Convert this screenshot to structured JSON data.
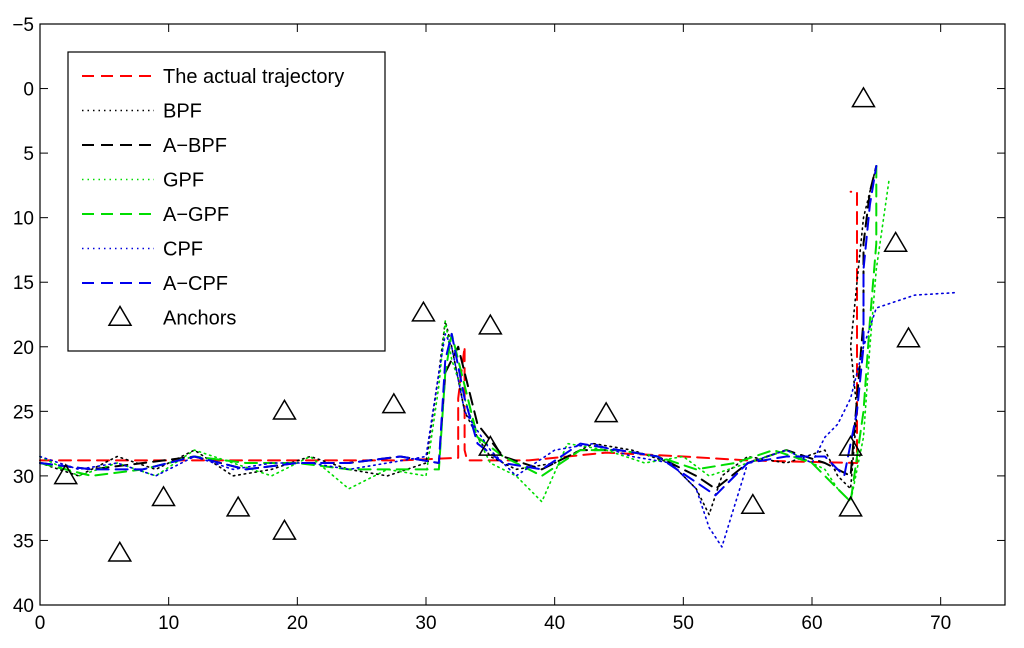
{
  "chart_data": {
    "type": "line",
    "title": "",
    "xlabel": "",
    "ylabel": "",
    "xlim": [
      0,
      75
    ],
    "ylim": [
      -5,
      40
    ],
    "y_axis_reversed": true,
    "grid": false,
    "legend_position": "top-left",
    "x_ticks": [
      "0",
      "10",
      "20",
      "30",
      "40",
      "50",
      "60",
      "70"
    ],
    "y_ticks": [
      "−5",
      "0",
      "5",
      "10",
      "15",
      "20",
      "25",
      "30",
      "35",
      "40"
    ],
    "series": [
      {
        "name": "The actual trajectory",
        "color": "#ff0000",
        "style": "dashed",
        "x": [
          0,
          10,
          20,
          28,
          32.5,
          32.5,
          33,
          33,
          33.2,
          38,
          44,
          50,
          55,
          63.5,
          63.5,
          63.5,
          63.5,
          63
        ],
        "y": [
          28.8,
          28.8,
          28.8,
          28.8,
          28.6,
          24,
          20,
          28,
          28.8,
          28.8,
          28.2,
          28.5,
          28.8,
          29,
          20,
          12,
          8,
          8
        ]
      },
      {
        "name": "BPF",
        "color": "#000000",
        "style": "dotted",
        "x": [
          0,
          3,
          6,
          9,
          12,
          15,
          18,
          21,
          24,
          27,
          30,
          31,
          31.5,
          32,
          33,
          34,
          35,
          37,
          40,
          43,
          46,
          49,
          51,
          52,
          53,
          55,
          58,
          61,
          62,
          63,
          63.5,
          63,
          63.5,
          64,
          64.5,
          65
        ],
        "y": [
          29,
          30,
          28.5,
          29.5,
          28,
          30,
          29.5,
          28.5,
          29.5,
          30,
          29,
          22,
          18,
          20,
          25,
          27,
          28.5,
          29.5,
          29,
          27.5,
          28,
          29,
          31,
          33,
          30,
          28.5,
          29,
          28,
          30,
          31,
          25,
          20,
          15,
          10,
          8,
          6
        ]
      },
      {
        "name": "A−BPF",
        "color": "#000000",
        "style": "dashed",
        "x": [
          0,
          4,
          8,
          12,
          16,
          20,
          24,
          28,
          31,
          31.5,
          32.5,
          34,
          36,
          39,
          42,
          45,
          48,
          51,
          52.5,
          55,
          58,
          61,
          63,
          63.5,
          64,
          64,
          64.5,
          65
        ],
        "y": [
          29,
          29.5,
          29,
          28.5,
          29.5,
          29,
          29,
          28.5,
          29,
          22,
          20,
          26,
          28.5,
          29.5,
          28,
          28,
          28.5,
          30,
          31,
          29,
          28,
          29,
          30,
          24,
          18,
          12,
          8,
          6
        ]
      },
      {
        "name": "GPF",
        "color": "#00dd00",
        "style": "dotted",
        "x": [
          0,
          3,
          6,
          9,
          12,
          15,
          18,
          21,
          24,
          27,
          30,
          31,
          31.5,
          32,
          33,
          34,
          35,
          37,
          39,
          41,
          44,
          47,
          50,
          52,
          55,
          58,
          61,
          62,
          63,
          64,
          64.5,
          65,
          66
        ],
        "y": [
          28.5,
          30,
          29,
          30,
          28,
          29,
          30,
          28.5,
          31,
          29.5,
          30,
          23,
          18,
          21,
          24,
          27,
          29,
          30,
          32,
          27.5,
          28,
          29,
          28.5,
          30,
          29,
          28,
          29.5,
          31,
          32,
          27,
          20,
          14,
          7
        ]
      },
      {
        "name": "A−GPF",
        "color": "#00dd00",
        "style": "dashed",
        "x": [
          0,
          4,
          8,
          12,
          16,
          20,
          24,
          28,
          31,
          31.5,
          32,
          33,
          34,
          36,
          39,
          42,
          45,
          48,
          51,
          54,
          57,
          60,
          62,
          63,
          64,
          64.5,
          65,
          65
        ],
        "y": [
          29,
          30,
          29.5,
          28.5,
          29,
          29,
          29.5,
          29.5,
          29.5,
          22,
          19,
          23,
          27,
          28.5,
          30,
          28,
          28,
          28.5,
          29.5,
          29,
          28,
          29,
          31,
          32,
          25,
          18,
          12,
          6
        ]
      },
      {
        "name": "CPF",
        "color": "#0000dd",
        "style": "dotted",
        "x": [
          0,
          3,
          6,
          9,
          12,
          15,
          18,
          21,
          24,
          27,
          30,
          31,
          31.5,
          32,
          33,
          35,
          37,
          40,
          43,
          46,
          49,
          51,
          52,
          53,
          55,
          58,
          60,
          61,
          62,
          63,
          64,
          65,
          68,
          71.2
        ],
        "y": [
          28.5,
          29.5,
          29,
          30,
          28.5,
          29.5,
          29,
          29,
          29.5,
          29,
          28.5,
          22,
          19,
          20,
          25,
          28,
          30,
          28,
          27.5,
          28.5,
          29,
          31,
          34,
          35.5,
          29,
          28,
          29,
          27,
          26,
          24,
          20,
          17,
          16,
          15.8
        ]
      },
      {
        "name": "A−CPF",
        "color": "#0000ee",
        "style": "dashed",
        "x": [
          0,
          4,
          8,
          12,
          16,
          20,
          24,
          28,
          31,
          31.5,
          32,
          33,
          34,
          36,
          39,
          42,
          45,
          48,
          51,
          52.5,
          55,
          58,
          61,
          62.5,
          63.5,
          64,
          64,
          64.5,
          65
        ],
        "y": [
          29,
          29.5,
          29.5,
          28.5,
          29.5,
          29,
          29,
          28.5,
          29,
          21,
          19,
          24,
          27.5,
          29,
          29.5,
          27.5,
          28,
          28.5,
          30.5,
          31.5,
          29,
          28.5,
          28.5,
          30,
          25,
          20,
          14,
          9,
          6
        ]
      },
      {
        "name": "Anchors",
        "color": "#000000",
        "style": "markers",
        "marker": "triangle",
        "x": [
          2,
          6.2,
          9.6,
          15.4,
          19,
          19,
          27.5,
          29.8,
          35,
          35,
          44,
          55.4,
          63,
          63,
          64,
          66.5,
          67.5
        ],
        "y": [
          30,
          36,
          31.7,
          32.5,
          25,
          34.3,
          24.5,
          17.4,
          18.4,
          27.8,
          25.2,
          32.3,
          27.8,
          32.5,
          0.8,
          12,
          19.4
        ]
      }
    ]
  }
}
